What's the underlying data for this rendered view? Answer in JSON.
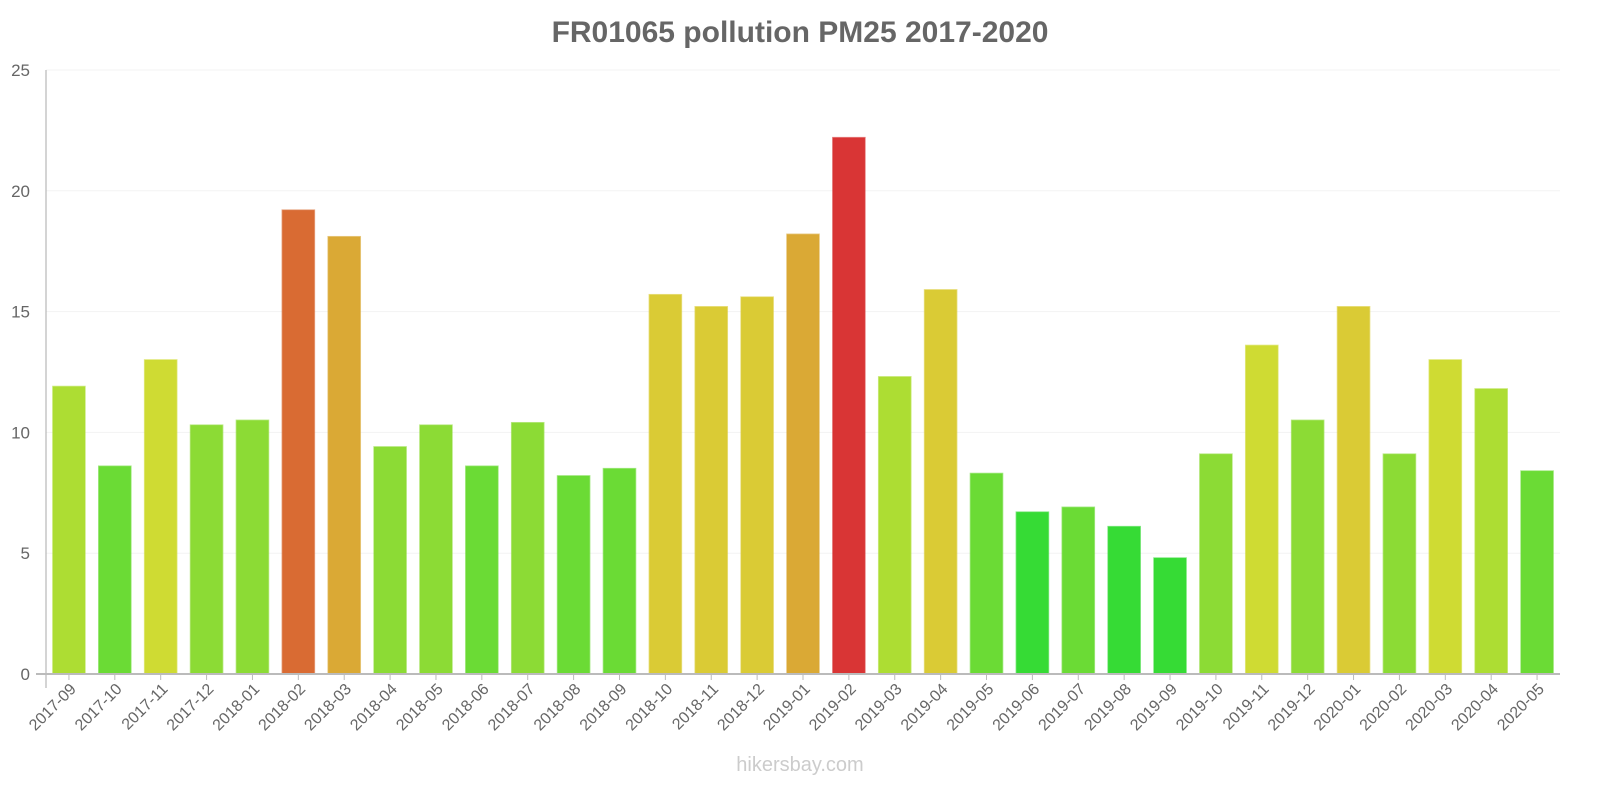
{
  "chart_data": {
    "type": "bar",
    "title": "FR01065 pollution PM25 2017-2020",
    "xlabel": "",
    "ylabel": "",
    "ylim": [
      0,
      25
    ],
    "yticks": [
      0,
      5,
      10,
      15,
      20,
      25
    ],
    "grid": true,
    "legend": null,
    "categories": [
      "2017-09",
      "2017-10",
      "2017-11",
      "2017-12",
      "2018-01",
      "2018-02",
      "2018-03",
      "2018-04",
      "2018-05",
      "2018-06",
      "2018-07",
      "2018-08",
      "2018-09",
      "2018-10",
      "2018-11",
      "2018-12",
      "2019-01",
      "2019-02",
      "2019-03",
      "2019-04",
      "2019-05",
      "2019-06",
      "2019-07",
      "2019-08",
      "2019-09",
      "2019-10",
      "2019-11",
      "2019-12",
      "2020-01",
      "2020-02",
      "2020-03",
      "2020-04",
      "2020-05"
    ],
    "values": [
      11.9,
      8.6,
      13.0,
      10.3,
      10.5,
      19.2,
      18.1,
      9.4,
      10.3,
      8.6,
      10.4,
      8.2,
      8.5,
      15.7,
      15.2,
      15.6,
      18.2,
      22.2,
      12.3,
      15.9,
      8.3,
      6.7,
      6.9,
      6.1,
      4.8,
      9.1,
      13.6,
      10.5,
      15.2,
      9.1,
      13.0,
      11.8,
      8.4
    ],
    "colors": [
      "#addd33",
      "#6bdb35",
      "#cfdb33",
      "#8cdb35",
      "#8cdb35",
      "#d96b33",
      "#daa935",
      "#8cdb35",
      "#8cdb35",
      "#6bdb35",
      "#8cdb35",
      "#6bdb35",
      "#6bdb35",
      "#dacb35",
      "#dacb35",
      "#dacb35",
      "#daa935",
      "#d93535",
      "#addd33",
      "#dacb35",
      "#6bdb35",
      "#36db35",
      "#6bdb35",
      "#36db35",
      "#36db35",
      "#8cdb35",
      "#cfdb33",
      "#8cdb35",
      "#dacb35",
      "#8cdb35",
      "#cfdb33",
      "#addd33",
      "#6bdb35"
    ]
  },
  "watermark": "hikersbay.com"
}
